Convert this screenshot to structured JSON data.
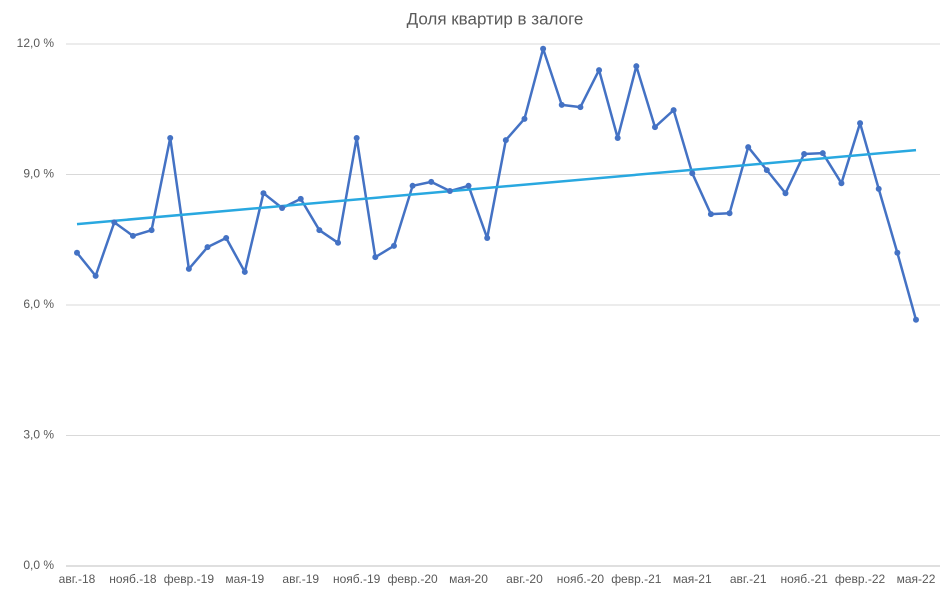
{
  "chart_data": {
    "type": "line",
    "title": "Доля квартир в залоге",
    "categories": [
      "авг.-18",
      null,
      null,
      "нояб.-18",
      null,
      null,
      "февр.-19",
      null,
      null,
      "мая-19",
      null,
      null,
      "авг.-19",
      null,
      null,
      "нояб.-19",
      null,
      null,
      "февр.-20",
      null,
      null,
      "мая-20",
      null,
      null,
      "авг.-20",
      null,
      null,
      "нояб.-20",
      null,
      null,
      "февр.-21",
      null,
      null,
      "мая-21",
      null,
      null,
      "авг.-21",
      null,
      null,
      "нояб.-21",
      null,
      null,
      "февр.-22",
      null,
      null,
      "мая-22"
    ],
    "series": [
      {
        "color": "#4472c4",
        "values": [
          7.2,
          6.67,
          7.9,
          7.59,
          7.72,
          9.84,
          6.83,
          7.33,
          7.54,
          6.76,
          8.57,
          8.23,
          8.44,
          7.72,
          7.43,
          9.84,
          7.1,
          7.36,
          8.74,
          8.83,
          8.62,
          8.74,
          7.54,
          9.79,
          10.28,
          11.89,
          10.6,
          10.55,
          11.4,
          9.84,
          11.49,
          10.09,
          10.48,
          9.03,
          8.09,
          8.11,
          9.63,
          9.1,
          8.57,
          9.47,
          9.49,
          8.8,
          10.18,
          8.67,
          7.2,
          5.66
        ]
      }
    ],
    "trendline": {
      "color": "#29a8e0",
      "values": [
        7.86,
        9.56
      ]
    },
    "ylim": [
      0,
      12
    ],
    "yticks": [
      {
        "value": 0,
        "label": "0,0 %"
      },
      {
        "value": 3,
        "label": "3,0 %"
      },
      {
        "value": 6,
        "label": "6,0 %"
      },
      {
        "value": 9,
        "label": "9,0 %"
      },
      {
        "value": 12,
        "label": "12,0 %"
      }
    ],
    "grid": true
  }
}
